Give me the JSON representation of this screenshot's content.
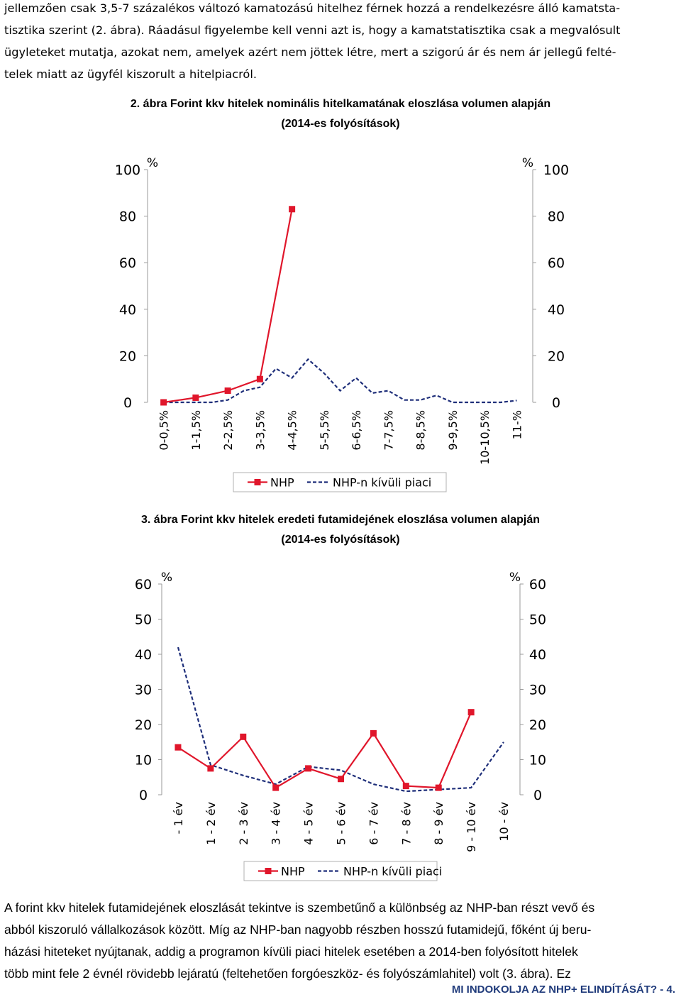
{
  "top_paragraph": [
    "jellemzően csak 3,5-7 százalékos változó kamatozású hitelhez férnek hozzá a rendelkezésre álló kamatsta-",
    "tisztika szerint (2. ábra). Ráadásul figyelembe kell venni azt is, hogy a kamatstatisztika csak a megvalósult",
    "ügyleteket mutatja, azokat nem, amelyek azért nem jöttek létre, mert a szigorú ár és nem ár jellegű felté-",
    "telek miatt az ügyfél kiszorult a hitelpiacról."
  ],
  "chart_data": [
    {
      "type": "line",
      "caption": "2.  ábra Forint kkv hitelek nominális hitelkamatának eloszlása volumen alapján",
      "caption_sub": "(2014-es folyósítások)",
      "axis_unit_left": "%",
      "axis_unit_right": "%",
      "ylim": [
        0,
        100
      ],
      "yticks": [
        "0",
        "20",
        "40",
        "60",
        "80",
        "100"
      ],
      "categories": [
        "0-0,5%",
        "1-1,5%",
        "2-2,5%",
        "3-3,5%",
        "4-4,5%",
        "5-5,5%",
        "6-6,5%",
        "7-7,5%",
        "8-8,5%",
        "9-9,5%",
        "10-10,5%",
        "11-%"
      ],
      "x_half_steps": 22,
      "series": [
        {
          "name": "NHP",
          "color": "#e0162b",
          "style": "solid-markers",
          "x": [
            0,
            1,
            2,
            3,
            4
          ],
          "values": [
            0,
            2,
            5,
            10,
            83
          ]
        },
        {
          "name": "NHP-n kívüli piaci",
          "color": "#1f2f7a",
          "style": "dashed",
          "x": [
            0,
            1,
            2,
            3,
            4,
            5,
            6,
            7,
            8,
            9,
            10,
            11,
            12,
            13,
            14,
            15,
            16,
            17,
            18,
            19,
            20,
            21,
            22
          ],
          "values": [
            0,
            0,
            0,
            0,
            1,
            5,
            6.5,
            14.5,
            10.5,
            18.5,
            12.5,
            5,
            10.5,
            4,
            5,
            1,
            1,
            3,
            0,
            0,
            0,
            0,
            0.8
          ]
        }
      ],
      "legend": "bottom"
    },
    {
      "type": "line",
      "caption": "3.  ábra Forint kkv hitelek eredeti futamidejének eloszlása volumen alapján",
      "caption_sub": "(2014-es folyósítások)",
      "axis_unit_left": "%",
      "axis_unit_right": "%",
      "ylim": [
        0,
        60
      ],
      "yticks": [
        "0",
        "10",
        "20",
        "30",
        "40",
        "50",
        "60"
      ],
      "categories": [
        "- 1 év",
        "1 - 2 év",
        "2 - 3 év",
        "3 - 4 év",
        "4 - 5 év",
        "5 - 6 év",
        "6 - 7 év",
        "7 - 8 év",
        "8 - 9 év",
        "9 - 10 év",
        "10 -  év"
      ],
      "series": [
        {
          "name": "NHP",
          "color": "#e0162b",
          "style": "solid-markers",
          "x": [
            0,
            1,
            2,
            3,
            4,
            5,
            6,
            7,
            8,
            9
          ],
          "values": [
            13.5,
            7.5,
            16.5,
            2,
            7.5,
            4.5,
            17.5,
            2.5,
            2,
            23.5
          ]
        },
        {
          "name": "NHP-n kívüli piaci",
          "color": "#1f2f7a",
          "style": "dashed",
          "x": [
            0,
            1,
            2,
            3,
            4,
            5,
            6,
            7,
            8,
            9,
            10
          ],
          "values": [
            42,
            8.5,
            5.5,
            3,
            8,
            7,
            3,
            1,
            1.5,
            2,
            15
          ]
        }
      ],
      "legend": "bottom"
    }
  ],
  "bottom_paragraph": [
    "A forint kkv hitelek futamidejének eloszlását tekintve is szembetűnő a különbség az NHP-ban részt vevő és",
    "abból kiszoruló vállalkozások között. Míg az NHP-ban nagyobb részben hosszú futamidejű, főként új beru-",
    "házási hiteteket nyújtanak, addig a programon kívüli piaci hitelek esetében a 2014-ben folyósított hitelek",
    "több mint fele 2 évnél rövidebb lejáratú (feltehetően forgóeszköz- és folyószámlahitel) volt (3. ábra). Ez"
  ],
  "footer": "MI INDOKOLJA AZ NHP+ ELINDÍTÁSÁT?  -  4."
}
